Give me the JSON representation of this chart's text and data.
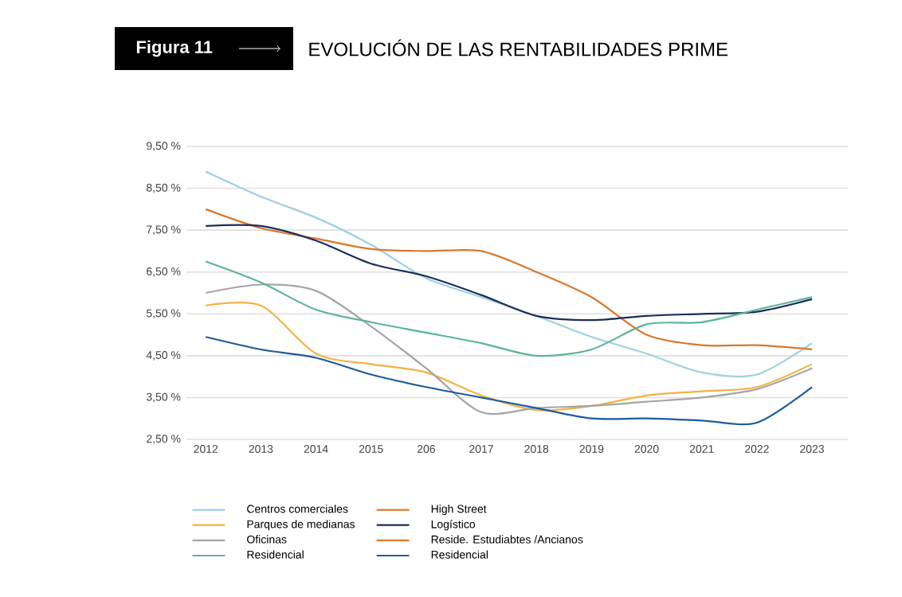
{
  "chart_data": {
    "type": "line",
    "title": "EVOLUCIÓN DE LAS RENTABILIDADES PRIME",
    "annotations": [
      "Figura 11"
    ],
    "categories": [
      "2012",
      "2013",
      "2014",
      "2015",
      "206",
      "2017",
      "2018",
      "2019",
      "2020",
      "2021",
      "2022",
      "2023"
    ],
    "ylim": [
      2.5,
      9.5
    ],
    "yticks": [
      {
        "value": 2.5,
        "label": "2,50 %"
      },
      {
        "value": 3.5,
        "label": "3,50 %"
      },
      {
        "value": 4.5,
        "label": "4,50 %"
      },
      {
        "value": 5.5,
        "label": "5,50 %"
      },
      {
        "value": 6.5,
        "label": "6,50 %"
      },
      {
        "value": 7.5,
        "label": "7,50 %"
      },
      {
        "value": 8.5,
        "label": "8,50 %"
      },
      {
        "value": 9.5,
        "label": "9,50 %"
      }
    ],
    "grid": "y",
    "legend": "bottom",
    "marker": "none",
    "line_style": "solid",
    "series": [
      {
        "name": "Centros comerciales",
        "color": "#9ed1e0",
        "values": [
          8.9,
          8.3,
          7.8,
          7.15,
          6.35,
          5.9,
          5.45,
          4.95,
          4.55,
          4.1,
          4.05,
          4.8
        ]
      },
      {
        "name": "High Street",
        "color": "#d9782d",
        "values": [
          8.0,
          7.55,
          7.3,
          7.05,
          7.0,
          7.0,
          6.5,
          5.9,
          5.0,
          4.75,
          4.75,
          4.65
        ]
      },
      {
        "name": "Parques de medianas",
        "color": "#f2b344",
        "values": [
          5.7,
          5.7,
          4.55,
          4.3,
          4.1,
          3.55,
          3.2,
          3.3,
          3.55,
          3.65,
          3.75,
          4.3
        ]
      },
      {
        "name": "Logístico",
        "color": "#1c2d5a",
        "values": [
          7.6,
          7.6,
          7.25,
          6.7,
          6.4,
          5.95,
          5.45,
          5.35,
          5.45,
          5.5,
          5.55,
          5.85
        ]
      },
      {
        "name": "Oficinas",
        "color": "#a5a5a5",
        "values": [
          6.0,
          6.2,
          6.05,
          5.2,
          4.2,
          3.15,
          3.25,
          3.3,
          3.4,
          3.5,
          3.7,
          4.2
        ]
      },
      {
        "name": "Reside. Estudiabtes /Ancianos",
        "color": "#e07b2a",
        "values": [
          null,
          null,
          null,
          null,
          null,
          null,
          null,
          null,
          null,
          null,
          null,
          null
        ]
      },
      {
        "name": "Residencial",
        "color": "#5ab59d",
        "values": [
          6.75,
          6.25,
          5.6,
          5.3,
          5.05,
          4.8,
          4.5,
          4.65,
          5.25,
          5.3,
          5.6,
          5.9
        ]
      },
      {
        "name": "Residencial",
        "color": "#1f5c9a",
        "values": [
          4.95,
          4.65,
          4.45,
          4.05,
          3.75,
          3.5,
          3.25,
          3.0,
          3.0,
          2.95,
          2.9,
          3.75
        ]
      }
    ]
  }
}
